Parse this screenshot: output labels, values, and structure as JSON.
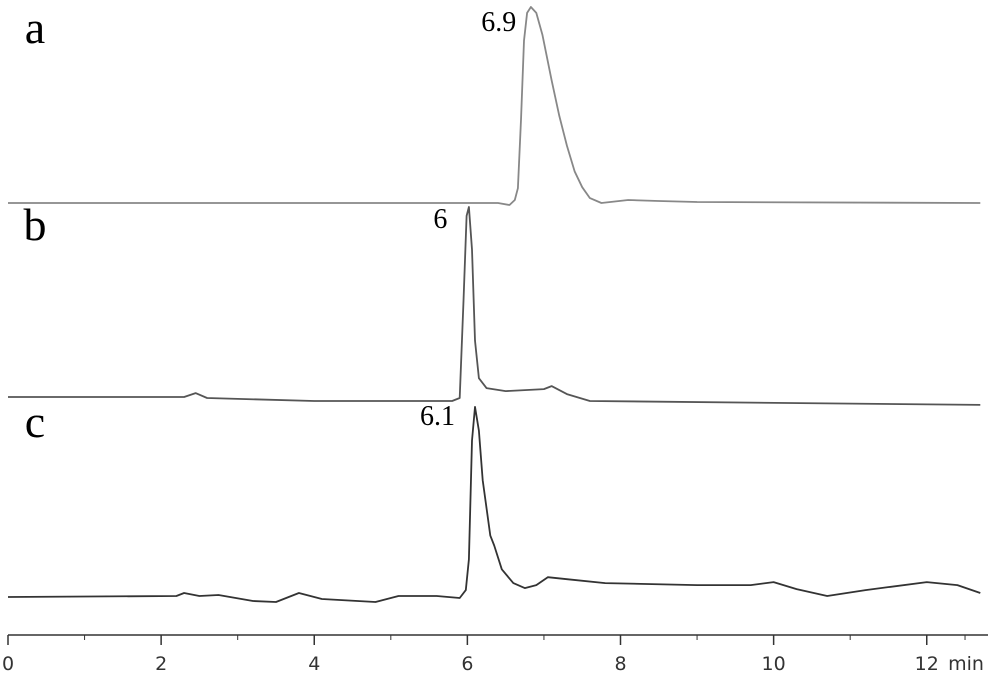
{
  "chart_data": {
    "type": "line",
    "xlim": [
      0,
      12.8
    ],
    "xticks": [
      0,
      2,
      4,
      6,
      8,
      10,
      12
    ],
    "xticks_minor": [
      1,
      3,
      5,
      7,
      9,
      11,
      12.5
    ],
    "xlabel": "min",
    "ylim": [
      0,
      100
    ],
    "series": [
      {
        "name": "a",
        "color": "#888888",
        "peak": 6.9,
        "x": [
          0,
          6.4,
          6.55,
          6.62,
          6.66,
          6.7,
          6.74,
          6.78,
          6.83,
          6.9,
          6.98,
          7.1,
          7.2,
          7.3,
          7.4,
          7.5,
          7.6,
          7.75,
          8.1,
          8.5,
          9.0,
          12.7
        ],
        "values": [
          0,
          0,
          -1,
          1.5,
          7.5,
          42,
          82,
          96,
          99,
          96,
          85,
          62,
          44,
          29,
          16,
          8,
          2.5,
          0,
          1.5,
          1,
          0.5,
          0
        ]
      },
      {
        "name": "b",
        "color": "#555555",
        "peak": 6.0,
        "x": [
          0,
          2.3,
          2.45,
          2.6,
          4,
          5.8,
          5.9,
          5.95,
          5.99,
          6.02,
          6.06,
          6.1,
          6.15,
          6.25,
          6.5,
          7.0,
          7.1,
          7.3,
          7.6,
          12.7
        ],
        "values": [
          1.5,
          1.5,
          3.5,
          1,
          -0.5,
          -0.5,
          1,
          50,
          93,
          97.5,
          76,
          30,
          11,
          6,
          4.5,
          5.5,
          7,
          3,
          -0.5,
          -2.5
        ]
      },
      {
        "name": "c",
        "color": "#333333",
        "peak": 6.1,
        "x": [
          0,
          2.2,
          2.3,
          2.5,
          2.75,
          3.2,
          3.5,
          3.8,
          4.1,
          4.8,
          5.1,
          5.6,
          5.9,
          5.98,
          6.02,
          6.06,
          6.1,
          6.15,
          6.2,
          6.3,
          6.35,
          6.45,
          6.6,
          6.75,
          6.9,
          7.05,
          7.3,
          7.8,
          9.0,
          9.7,
          10.0,
          10.3,
          10.7,
          11.2,
          12.0,
          12.4,
          12.7
        ],
        "values": [
          0,
          0.5,
          2,
          0.5,
          1,
          -2,
          -2.5,
          2,
          -1,
          -2.5,
          0.5,
          0.5,
          -0.5,
          3.5,
          19,
          79,
          96,
          84,
          59,
          31,
          26,
          14,
          7,
          4.5,
          6,
          10,
          9,
          7,
          6,
          6,
          7.5,
          4,
          0.5,
          3.5,
          7.5,
          6,
          2
        ]
      }
    ]
  }
}
